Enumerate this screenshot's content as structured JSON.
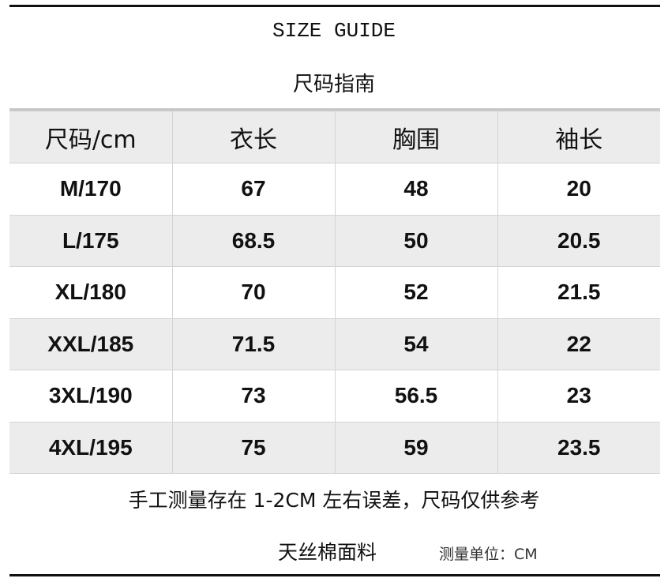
{
  "title": "SIZE GUIDE",
  "subtitle": "尺码指南",
  "table": {
    "headers": [
      "尺码/cm",
      "衣长",
      "胸围",
      "袖长"
    ],
    "rows": [
      [
        "M/170",
        "67",
        "48",
        "20"
      ],
      [
        "L/175",
        "68.5",
        "50",
        "20.5"
      ],
      [
        "XL/180",
        "70",
        "52",
        "21.5"
      ],
      [
        "XXL/185",
        "71.5",
        "54",
        "22"
      ],
      [
        "3XL/190",
        "73",
        "56.5",
        "23"
      ],
      [
        "4XL/195",
        "75",
        "59",
        "23.5"
      ]
    ]
  },
  "note": "手工测量存在 1-2CM 左右误差，尺码仅供参考",
  "fabric": "天丝棉面料",
  "unit": "测量单位：CM"
}
